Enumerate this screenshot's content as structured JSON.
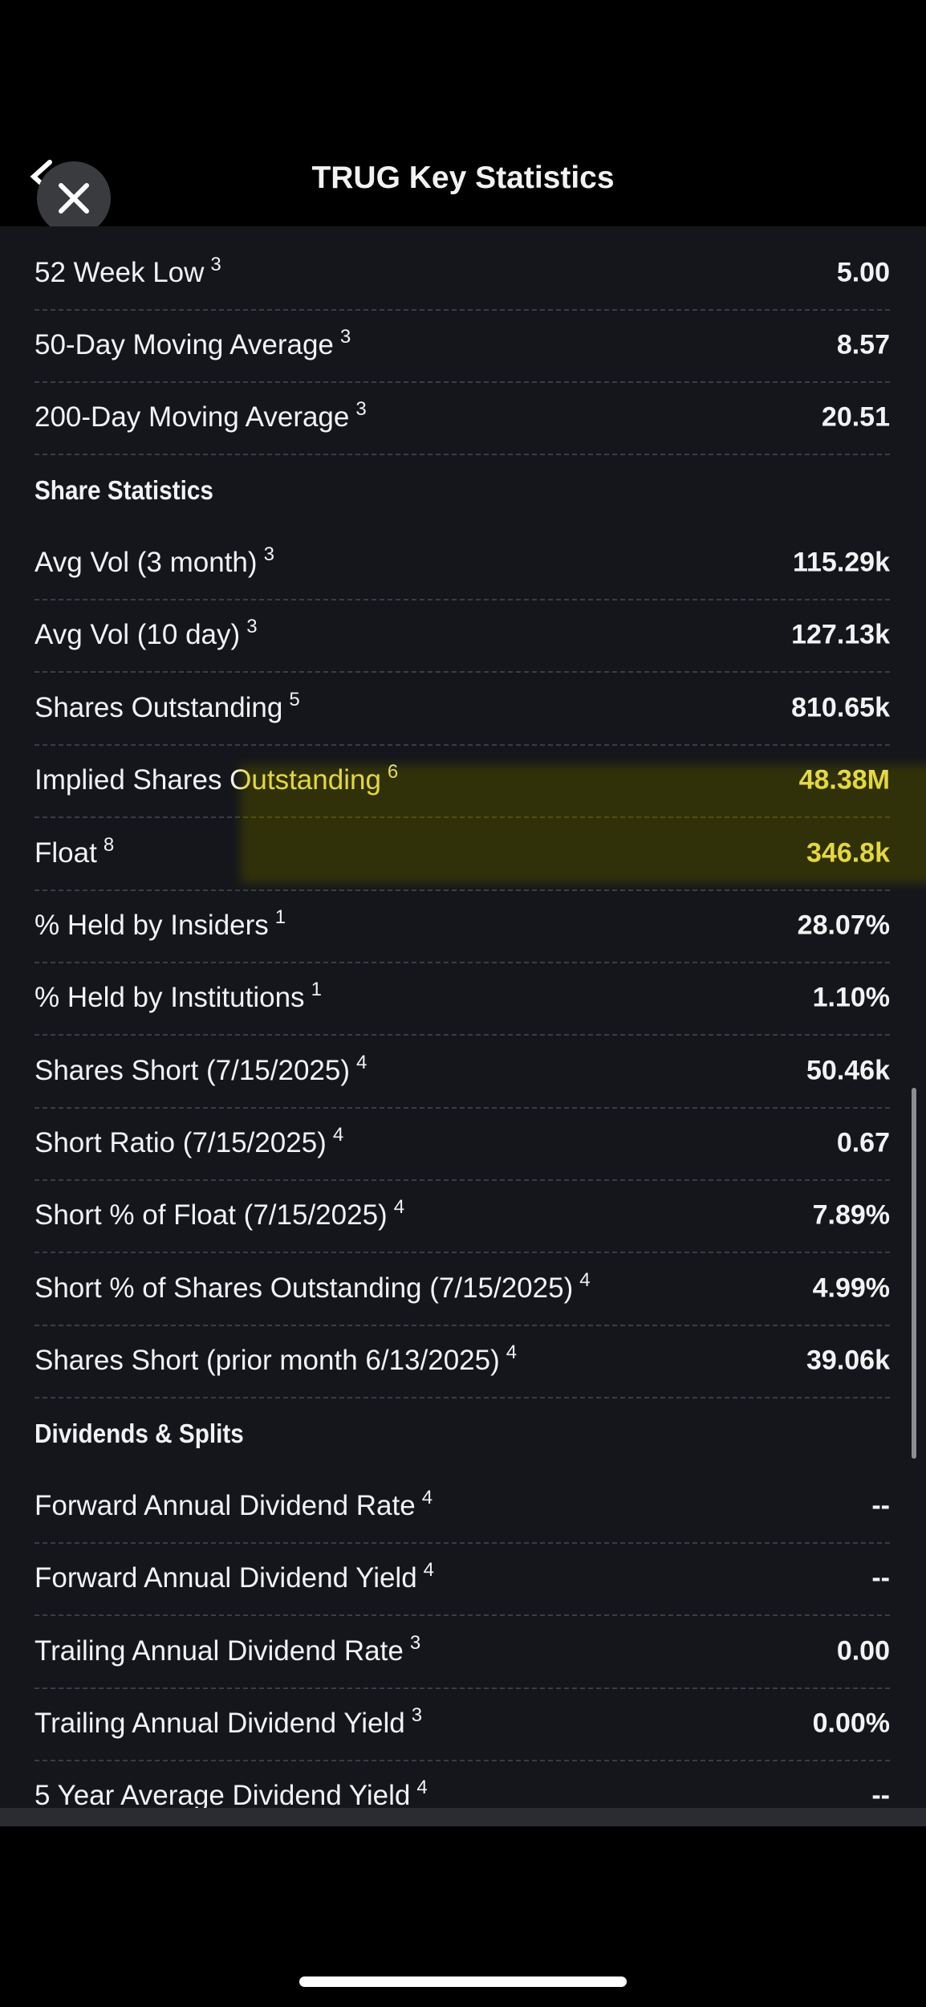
{
  "header": {
    "title": "TRUG Key Statistics"
  },
  "items": [
    {
      "label": "52 Week Low",
      "sup": "3",
      "value": "5.00"
    },
    {
      "label": "50-Day Moving Average",
      "sup": "3",
      "value": "8.57"
    },
    {
      "label": "200-Day Moving Average",
      "sup": "3",
      "value": "20.51"
    },
    {
      "heading": "Share Statistics"
    },
    {
      "label": "Avg Vol (3 month)",
      "sup": "3",
      "value": "115.29k"
    },
    {
      "label": "Avg Vol (10 day)",
      "sup": "3",
      "value": "127.13k"
    },
    {
      "label": "Shares Outstanding",
      "sup": "5",
      "value": "810.65k"
    },
    {
      "label": "Implied Shares Outstanding",
      "sup": "6",
      "value": "48.38M"
    },
    {
      "label": "Float",
      "sup": "8",
      "value": "346.8k"
    },
    {
      "label": "% Held by Insiders",
      "sup": "1",
      "value": "28.07%"
    },
    {
      "label": "% Held by Institutions",
      "sup": "1",
      "value": "1.10%"
    },
    {
      "label": "Shares Short (7/15/2025)",
      "sup": "4",
      "value": "50.46k"
    },
    {
      "label": "Short Ratio (7/15/2025)",
      "sup": "4",
      "value": "0.67"
    },
    {
      "label": "Short % of Float (7/15/2025)",
      "sup": "4",
      "value": "7.89%"
    },
    {
      "label": "Short % of Shares Outstanding (7/15/2025)",
      "sup": "4",
      "value": "4.99%"
    },
    {
      "label": "Shares Short (prior month 6/13/2025)",
      "sup": "4",
      "value": "39.06k"
    },
    {
      "heading": "Dividends & Splits"
    },
    {
      "label": "Forward Annual Dividend Rate",
      "sup": "4",
      "value": "--"
    },
    {
      "label": "Forward Annual Dividend Yield",
      "sup": "4",
      "value": "--"
    },
    {
      "label": "Trailing Annual Dividend Rate",
      "sup": "3",
      "value": "0.00"
    },
    {
      "label": "Trailing Annual Dividend Yield",
      "sup": "3",
      "value": "0.00%"
    },
    {
      "label": "5 Year Average Dividend Yield",
      "sup": "4",
      "value": "--"
    }
  ]
}
